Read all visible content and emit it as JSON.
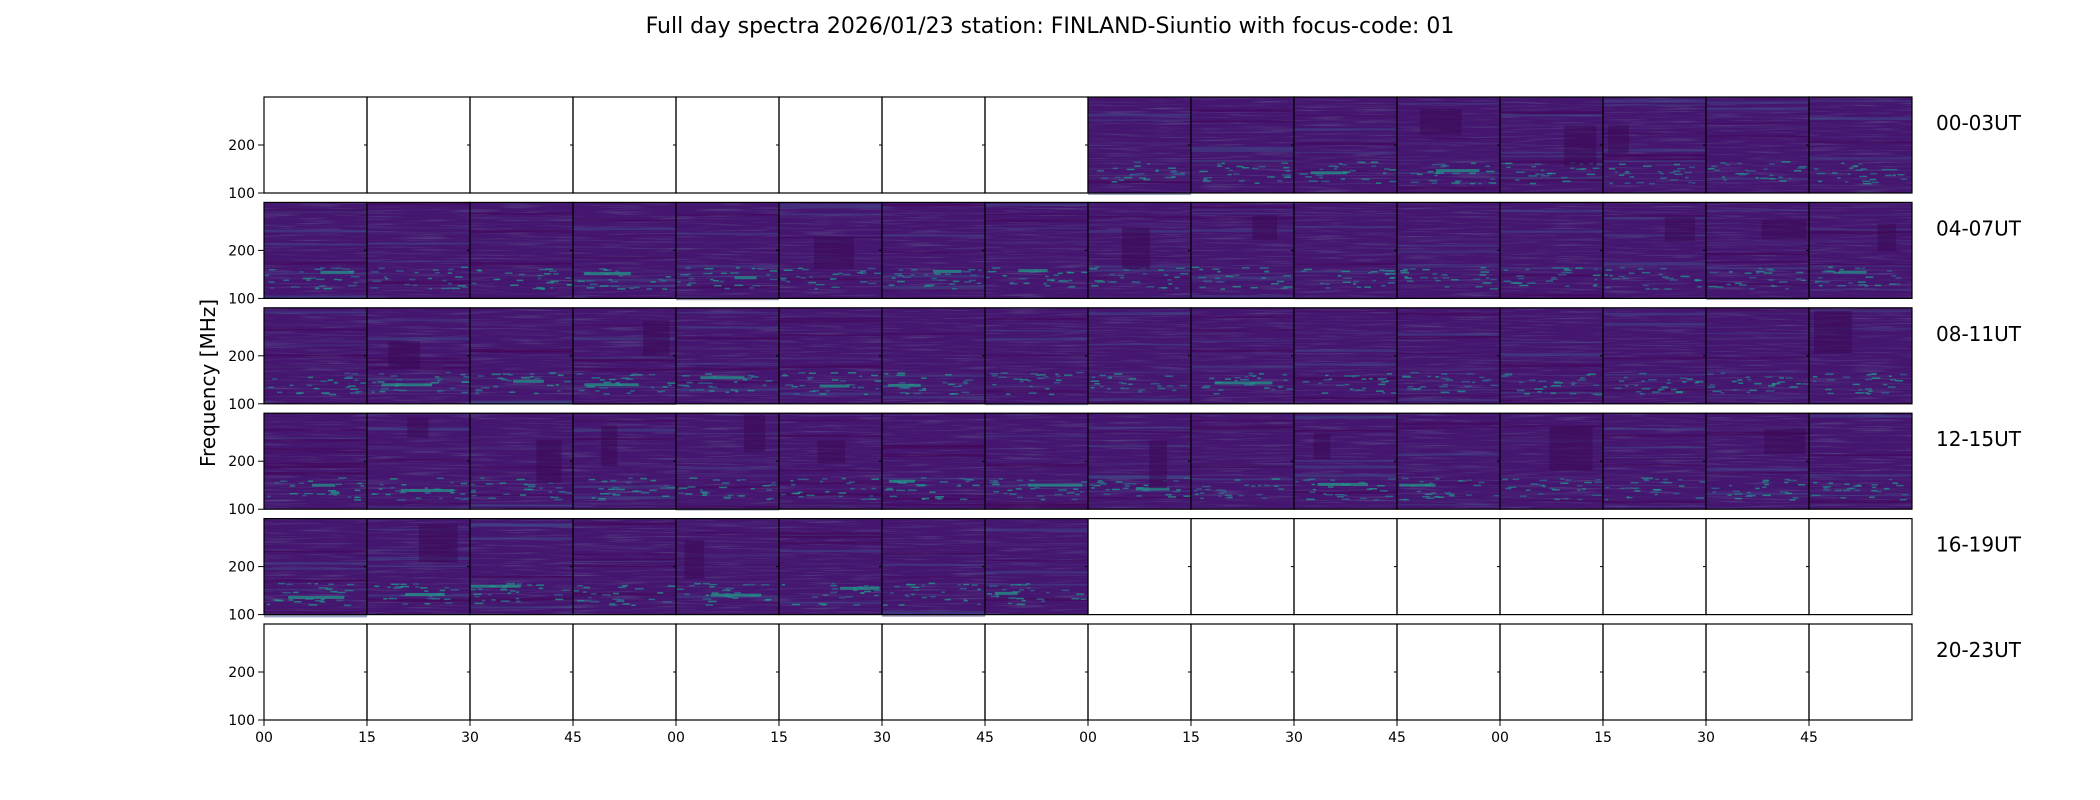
{
  "chart_data": {
    "type": "heatmap",
    "title": "Full day spectra 2026/01/23 station: FINLAND-Siuntio with focus-code: 01",
    "ylabel": "Frequency [MHz]",
    "xlabel": "",
    "yticks": [
      "200",
      "100"
    ],
    "ylim": [
      100,
      300
    ],
    "xticks": [
      "00",
      "15",
      "30",
      "45",
      "00",
      "15",
      "30",
      "45",
      "00",
      "15",
      "30",
      "45",
      "00",
      "15",
      "30",
      "45"
    ],
    "colormap": {
      "name": "viridis",
      "background": "#45166f",
      "colors": [
        "#440154",
        "#482878",
        "#3e4a89",
        "#31688e",
        "#26828e",
        "#1f9e89",
        "#35b779"
      ]
    },
    "rows": [
      {
        "label": "00-03UT",
        "panels": [
          0,
          0,
          0,
          0,
          0,
          0,
          0,
          0,
          1,
          1,
          1,
          1,
          1,
          1,
          1,
          1
        ]
      },
      {
        "label": "04-07UT",
        "panels": [
          1,
          1,
          1,
          1,
          1,
          1,
          1,
          1,
          1,
          1,
          1,
          1,
          1,
          1,
          1,
          1
        ]
      },
      {
        "label": "08-11UT",
        "panels": [
          1,
          1,
          1,
          1,
          1,
          1,
          1,
          1,
          1,
          1,
          1,
          1,
          1,
          1,
          1,
          1
        ]
      },
      {
        "label": "12-15UT",
        "panels": [
          1,
          1,
          1,
          1,
          1,
          1,
          1,
          1,
          1,
          1,
          1,
          1,
          1,
          1,
          1,
          1
        ]
      },
      {
        "label": "16-19UT",
        "panels": [
          1,
          1,
          1,
          1,
          1,
          1,
          1,
          1,
          0,
          0,
          0,
          0,
          0,
          0,
          0,
          0
        ]
      },
      {
        "label": "20-23UT",
        "panels": [
          0,
          0,
          0,
          0,
          0,
          0,
          0,
          0,
          0,
          0,
          0,
          0,
          0,
          0,
          0,
          0
        ]
      }
    ]
  }
}
